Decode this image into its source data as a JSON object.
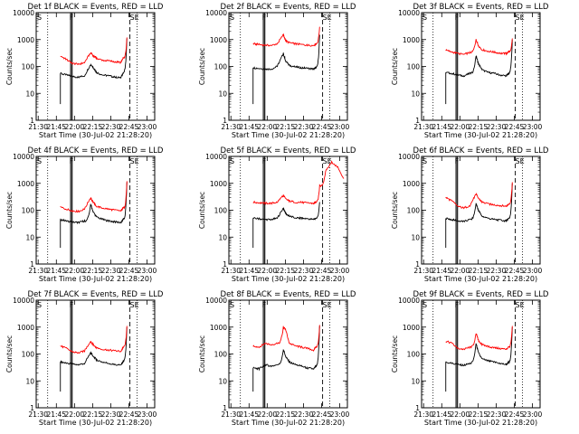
{
  "x_axis_title": "Start Time (30-Jul-02 21:28:20)",
  "y_axis_title": "Counts/sec",
  "x_ticks": [
    "21:30",
    "21:45",
    "22:00",
    "22:15",
    "22:30",
    "22:45",
    "23:00"
  ],
  "y_ticks": [
    "1",
    "10",
    "100",
    "1000",
    "10000"
  ],
  "markers": {
    "left": "S",
    "mid": "F",
    "right": "SE"
  },
  "colors": {
    "events": "#000000",
    "lld": "#ff0000"
  },
  "chart_data": [
    {
      "type": "line",
      "title": "Det 1f BLACK = Events, RED = LLD",
      "xlabel": "Start Time (30-Jul-02 21:28:20)",
      "ylabel": "Counts/sec",
      "xlim_minutes": [
        0,
        98
      ],
      "ylim": [
        1,
        10000
      ],
      "yscale": "log",
      "x_minutes": [
        0,
        5,
        10,
        15,
        20,
        25,
        30,
        35,
        40,
        45,
        47,
        50,
        55,
        60,
        65,
        70,
        72,
        75
      ],
      "series": [
        {
          "name": "Events",
          "values": [
            null,
            null,
            null,
            null,
            55,
            48,
            42,
            40,
            45,
            120,
            95,
            60,
            48,
            45,
            40,
            38,
            60,
            1100
          ]
        },
        {
          "name": "LLD",
          "values": [
            null,
            null,
            null,
            null,
            250,
            180,
            130,
            120,
            140,
            330,
            260,
            200,
            170,
            160,
            150,
            140,
            200,
            1200
          ]
        }
      ],
      "vlines_minutes": {
        "solid": [
          28.5,
          29.7
        ],
        "dotted": [
          9.5,
          83.5
        ],
        "dashed": [
          77.5
        ]
      }
    },
    {
      "type": "line",
      "title": "Det 2f BLACK = Events, RED = LLD",
      "xlabel": "Start Time (30-Jul-02 21:28:20)",
      "ylabel": "Counts/sec",
      "xlim_minutes": [
        0,
        98
      ],
      "ylim": [
        1,
        10000
      ],
      "yscale": "log",
      "x_minutes": [
        0,
        5,
        10,
        15,
        20,
        25,
        30,
        35,
        40,
        45,
        47,
        50,
        55,
        60,
        65,
        70,
        72,
        75
      ],
      "series": [
        {
          "name": "Events",
          "values": [
            null,
            null,
            null,
            null,
            90,
            85,
            80,
            80,
            100,
            300,
            160,
            110,
            95,
            90,
            85,
            80,
            90,
            1500
          ]
        },
        {
          "name": "LLD",
          "values": [
            null,
            null,
            null,
            null,
            700,
            650,
            620,
            600,
            700,
            1500,
            900,
            750,
            700,
            650,
            620,
            600,
            700,
            3000
          ]
        }
      ],
      "vlines_minutes": {
        "solid": [
          28.5,
          29.7
        ],
        "dotted": [
          9.5,
          83.5
        ],
        "dashed": [
          77.5
        ]
      }
    },
    {
      "type": "line",
      "title": "Det 3f BLACK = Events, RED = LLD",
      "xlabel": "Start Time (30-Jul-02 21:28:20)",
      "ylabel": "Counts/sec",
      "xlim_minutes": [
        0,
        98
      ],
      "ylim": [
        1,
        10000
      ],
      "yscale": "log",
      "x_minutes": [
        0,
        5,
        10,
        15,
        20,
        25,
        30,
        35,
        40,
        45,
        47,
        50,
        55,
        60,
        65,
        70,
        72,
        75
      ],
      "series": [
        {
          "name": "Events",
          "values": [
            null,
            null,
            null,
            null,
            60,
            55,
            48,
            45,
            55,
            250,
            130,
            75,
            60,
            55,
            48,
            45,
            55,
            1000
          ]
        },
        {
          "name": "LLD",
          "values": [
            null,
            null,
            null,
            null,
            400,
            350,
            300,
            280,
            330,
            1000,
            600,
            420,
            370,
            340,
            310,
            300,
            350,
            1100
          ]
        }
      ],
      "vlines_minutes": {
        "solid": [
          28.5,
          29.7
        ],
        "dotted": [
          9.5,
          83.5
        ],
        "dashed": [
          77.5
        ]
      }
    },
    {
      "type": "line",
      "title": "Det 4f BLACK = Events, RED = LLD",
      "xlabel": "Start Time (30-Jul-02 21:28:20)",
      "ylabel": "Counts/sec",
      "xlim_minutes": [
        0,
        98
      ],
      "ylim": [
        1,
        10000
      ],
      "yscale": "log",
      "x_minutes": [
        0,
        5,
        10,
        15,
        20,
        25,
        30,
        35,
        40,
        45,
        47,
        50,
        55,
        60,
        65,
        70,
        72,
        75
      ],
      "series": [
        {
          "name": "Events",
          "values": [
            null,
            null,
            null,
            null,
            45,
            40,
            36,
            35,
            40,
            170,
            90,
            55,
            45,
            40,
            37,
            35,
            45,
            1100
          ]
        },
        {
          "name": "LLD",
          "values": [
            null,
            null,
            null,
            null,
            130,
            110,
            95,
            90,
            110,
            300,
            200,
            140,
            120,
            110,
            100,
            95,
            120,
            1200
          ]
        }
      ],
      "vlines_minutes": {
        "solid": [
          28.5,
          29.7
        ],
        "dotted": [
          9.5,
          83.5
        ],
        "dashed": [
          77.5
        ]
      }
    },
    {
      "type": "line",
      "title": "Det 5f BLACK = Events, RED = LLD",
      "xlabel": "Start Time (30-Jul-02 21:28:20)",
      "ylabel": "Counts/sec",
      "xlim_minutes": [
        0,
        98
      ],
      "ylim": [
        1,
        10000
      ],
      "yscale": "log",
      "x_minutes": [
        0,
        5,
        10,
        15,
        20,
        25,
        30,
        35,
        40,
        45,
        47,
        50,
        55,
        60,
        65,
        70,
        72,
        75,
        80,
        85,
        90,
        95
      ],
      "series": [
        {
          "name": "Events",
          "values": [
            null,
            null,
            null,
            null,
            50,
            48,
            45,
            45,
            50,
            120,
            75,
            60,
            52,
            50,
            48,
            45,
            50,
            200,
            null,
            null,
            null,
            null
          ]
        },
        {
          "name": "LLD",
          "values": [
            null,
            null,
            null,
            null,
            200,
            190,
            180,
            180,
            200,
            360,
            260,
            220,
            200,
            195,
            185,
            180,
            200,
            800,
            3000,
            6000,
            4000,
            1500
          ]
        }
      ],
      "vlines_minutes": {
        "solid": [
          28.5,
          29.7
        ],
        "dotted": [
          9.5,
          83.5
        ],
        "dashed": [
          77.5
        ]
      }
    },
    {
      "type": "line",
      "title": "Det 6f BLACK = Events, RED = LLD",
      "xlabel": "Start Time (30-Jul-02 21:28:20)",
      "ylabel": "Counts/sec",
      "xlim_minutes": [
        0,
        98
      ],
      "ylim": [
        1,
        10000
      ],
      "yscale": "log",
      "x_minutes": [
        0,
        5,
        10,
        15,
        20,
        25,
        30,
        35,
        40,
        45,
        47,
        50,
        55,
        60,
        65,
        70,
        72,
        75
      ],
      "series": [
        {
          "name": "Events",
          "values": [
            null,
            null,
            null,
            null,
            50,
            45,
            40,
            38,
            45,
            180,
            100,
            60,
            50,
            45,
            42,
            40,
            50,
            1000
          ]
        },
        {
          "name": "LLD",
          "values": [
            null,
            null,
            null,
            null,
            300,
            220,
            140,
            120,
            150,
            400,
            280,
            200,
            170,
            160,
            150,
            140,
            170,
            1100
          ]
        }
      ],
      "vlines_minutes": {
        "solid": [
          28.5,
          29.7
        ],
        "dotted": [
          9.5,
          83.5
        ],
        "dashed": [
          77.5
        ]
      }
    },
    {
      "type": "line",
      "title": "Det 7f BLACK = Events, RED = LLD",
      "xlabel": "Start Time (30-Jul-02 21:28:20)",
      "ylabel": "Counts/sec",
      "xlim_minutes": [
        0,
        98
      ],
      "ylim": [
        1,
        10000
      ],
      "yscale": "log",
      "x_minutes": [
        0,
        5,
        10,
        15,
        20,
        25,
        30,
        35,
        40,
        45,
        47,
        50,
        55,
        60,
        65,
        70,
        72,
        75
      ],
      "series": [
        {
          "name": "Events",
          "values": [
            null,
            null,
            null,
            null,
            50,
            46,
            42,
            40,
            45,
            110,
            85,
            60,
            50,
            45,
            40,
            38,
            55,
            1000
          ]
        },
        {
          "name": "LLD",
          "values": [
            null,
            null,
            null,
            null,
            200,
            160,
            120,
            110,
            130,
            300,
            220,
            170,
            150,
            140,
            130,
            125,
            180,
            1100
          ]
        }
      ],
      "vlines_minutes": {
        "solid": [
          28.5,
          29.7
        ],
        "dotted": [
          9.5,
          83.5
        ],
        "dashed": [
          77.5
        ]
      }
    },
    {
      "type": "line",
      "title": "Det 8f BLACK = Events, RED = LLD",
      "xlabel": "Start Time (30-Jul-02 21:28:20)",
      "ylabel": "Counts/sec",
      "xlim_minutes": [
        0,
        98
      ],
      "ylim": [
        1,
        10000
      ],
      "yscale": "log",
      "x_minutes": [
        0,
        5,
        10,
        15,
        20,
        25,
        30,
        35,
        40,
        45,
        47,
        50,
        55,
        60,
        65,
        70,
        72,
        75
      ],
      "series": [
        {
          "name": "Events",
          "values": [
            null,
            null,
            null,
            null,
            30,
            28,
            40,
            35,
            40,
            150,
            80,
            50,
            40,
            35,
            30,
            28,
            35,
            1100
          ]
        },
        {
          "name": "LLD",
          "values": [
            null,
            null,
            null,
            null,
            200,
            180,
            250,
            220,
            250,
            1000,
            800,
            250,
            200,
            180,
            160,
            140,
            180,
            1200
          ]
        }
      ],
      "vlines_minutes": {
        "solid": [
          28.5,
          29.7
        ],
        "dotted": [
          9.5,
          83.5
        ],
        "dashed": [
          77.5
        ]
      }
    },
    {
      "type": "line",
      "title": "Det 9f BLACK = Events, RED = LLD",
      "xlabel": "Start Time (30-Jul-02 21:28:20)",
      "ylabel": "Counts/sec",
      "xlim_minutes": [
        0,
        98
      ],
      "ylim": [
        1,
        10000
      ],
      "yscale": "log",
      "x_minutes": [
        0,
        5,
        10,
        15,
        20,
        25,
        30,
        35,
        40,
        45,
        47,
        50,
        55,
        60,
        65,
        70,
        72,
        75
      ],
      "series": [
        {
          "name": "Events",
          "values": [
            null,
            null,
            null,
            null,
            50,
            45,
            40,
            38,
            45,
            250,
            110,
            65,
            55,
            50,
            45,
            40,
            50,
            1000
          ]
        },
        {
          "name": "LLD",
          "values": [
            null,
            null,
            null,
            null,
            300,
            250,
            160,
            150,
            180,
            600,
            320,
            220,
            190,
            170,
            160,
            150,
            180,
            1100
          ]
        }
      ],
      "vlines_minutes": {
        "solid": [
          28.5,
          29.7
        ],
        "dotted": [
          9.5,
          83.5
        ],
        "dashed": [
          77.5
        ]
      }
    }
  ]
}
